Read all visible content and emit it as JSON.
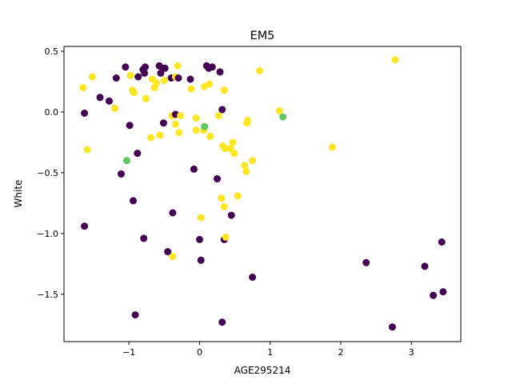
{
  "chart_data": {
    "type": "scatter",
    "title": "EM5",
    "xlabel": "AGE295214",
    "ylabel": "White",
    "xlim": [
      -1.92,
      3.7
    ],
    "ylim": [
      -1.89,
      0.54
    ],
    "xticks": [
      -1,
      0,
      1,
      2,
      3
    ],
    "yticks": [
      0.5,
      0.0,
      -0.5,
      -1.0,
      -1.5
    ],
    "grid": false,
    "legend": "none",
    "colors": {
      "purple": "#440154",
      "yellow": "#fde725",
      "green": "#5ec962"
    },
    "points": [
      {
        "x": -1.65,
        "y": 0.2,
        "c": "yellow"
      },
      {
        "x": -1.52,
        "y": 0.29,
        "c": "yellow"
      },
      {
        "x": -1.63,
        "y": -0.01,
        "c": "purple"
      },
      {
        "x": -1.59,
        "y": -0.31,
        "c": "yellow"
      },
      {
        "x": -1.63,
        "y": -0.94,
        "c": "purple"
      },
      {
        "x": -1.41,
        "y": 0.12,
        "c": "purple"
      },
      {
        "x": -1.28,
        "y": 0.09,
        "c": "purple"
      },
      {
        "x": -1.2,
        "y": 0.03,
        "c": "yellow"
      },
      {
        "x": -1.18,
        "y": 0.28,
        "c": "purple"
      },
      {
        "x": -1.05,
        "y": 0.37,
        "c": "purple"
      },
      {
        "x": -0.98,
        "y": 0.3,
        "c": "yellow"
      },
      {
        "x": -0.95,
        "y": 0.18,
        "c": "yellow"
      },
      {
        "x": -0.93,
        "y": 0.16,
        "c": "yellow"
      },
      {
        "x": -0.87,
        "y": 0.29,
        "c": "purple"
      },
      {
        "x": -0.8,
        "y": 0.35,
        "c": "purple"
      },
      {
        "x": -0.77,
        "y": 0.37,
        "c": "purple"
      },
      {
        "x": -0.78,
        "y": 0.32,
        "c": "purple"
      },
      {
        "x": -0.76,
        "y": 0.11,
        "c": "yellow"
      },
      {
        "x": -0.67,
        "y": 0.27,
        "c": "yellow"
      },
      {
        "x": -0.64,
        "y": 0.2,
        "c": "yellow"
      },
      {
        "x": -0.61,
        "y": 0.24,
        "c": "yellow"
      },
      {
        "x": -0.57,
        "y": 0.38,
        "c": "purple"
      },
      {
        "x": -0.55,
        "y": 0.32,
        "c": "purple"
      },
      {
        "x": -0.52,
        "y": 0.36,
        "c": "purple"
      },
      {
        "x": -0.5,
        "y": 0.26,
        "c": "yellow"
      },
      {
        "x": -0.49,
        "y": 0.36,
        "c": "purple"
      },
      {
        "x": -0.4,
        "y": 0.28,
        "c": "purple"
      },
      {
        "x": -0.34,
        "y": 0.29,
        "c": "yellow"
      },
      {
        "x": -0.31,
        "y": 0.38,
        "c": "yellow"
      },
      {
        "x": -0.3,
        "y": 0.28,
        "c": "purple"
      },
      {
        "x": -0.13,
        "y": 0.27,
        "c": "purple"
      },
      {
        "x": -0.12,
        "y": 0.19,
        "c": "yellow"
      },
      {
        "x": -0.99,
        "y": -0.11,
        "c": "purple"
      },
      {
        "x": -1.03,
        "y": -0.4,
        "c": "green"
      },
      {
        "x": -0.88,
        "y": -0.34,
        "c": "purple"
      },
      {
        "x": -1.11,
        "y": -0.51,
        "c": "purple"
      },
      {
        "x": -0.94,
        "y": -0.73,
        "c": "purple"
      },
      {
        "x": -0.69,
        "y": -0.21,
        "c": "yellow"
      },
      {
        "x": -0.56,
        "y": -0.19,
        "c": "yellow"
      },
      {
        "x": -0.51,
        "y": -0.09,
        "c": "purple"
      },
      {
        "x": -0.39,
        "y": -0.03,
        "c": "yellow"
      },
      {
        "x": -0.34,
        "y": -0.02,
        "c": "purple"
      },
      {
        "x": -0.34,
        "y": -0.1,
        "c": "yellow"
      },
      {
        "x": -0.27,
        "y": -0.03,
        "c": "yellow"
      },
      {
        "x": -0.29,
        "y": -0.17,
        "c": "yellow"
      },
      {
        "x": -0.05,
        "y": -0.05,
        "c": "yellow"
      },
      {
        "x": -0.05,
        "y": -0.15,
        "c": "yellow"
      },
      {
        "x": -0.08,
        "y": -0.47,
        "c": "purple"
      },
      {
        "x": 0.06,
        "y": -0.15,
        "c": "yellow"
      },
      {
        "x": 0.07,
        "y": -0.12,
        "c": "green"
      },
      {
        "x": 0.15,
        "y": -0.2,
        "c": "yellow"
      },
      {
        "x": 0.07,
        "y": 0.21,
        "c": "yellow"
      },
      {
        "x": 0.14,
        "y": 0.23,
        "c": "yellow"
      },
      {
        "x": 0.1,
        "y": 0.38,
        "c": "purple"
      },
      {
        "x": 0.13,
        "y": 0.36,
        "c": "purple"
      },
      {
        "x": 0.18,
        "y": 0.37,
        "c": "purple"
      },
      {
        "x": 0.29,
        "y": 0.33,
        "c": "purple"
      },
      {
        "x": 0.35,
        "y": 0.18,
        "c": "yellow"
      },
      {
        "x": 0.32,
        "y": 0.02,
        "c": "purple"
      },
      {
        "x": 0.27,
        "y": -0.03,
        "c": "yellow"
      },
      {
        "x": 0.33,
        "y": -0.28,
        "c": "yellow"
      },
      {
        "x": 0.36,
        "y": -0.3,
        "c": "yellow"
      },
      {
        "x": 0.44,
        "y": -0.3,
        "c": "yellow"
      },
      {
        "x": 0.47,
        "y": -0.25,
        "c": "yellow"
      },
      {
        "x": 0.49,
        "y": -0.34,
        "c": "yellow"
      },
      {
        "x": 0.25,
        "y": -0.55,
        "c": "purple"
      },
      {
        "x": 0.31,
        "y": -0.71,
        "c": "yellow"
      },
      {
        "x": 0.35,
        "y": -0.78,
        "c": "yellow"
      },
      {
        "x": 0.54,
        "y": -0.69,
        "c": "yellow"
      },
      {
        "x": 0.45,
        "y": -0.85,
        "c": "purple"
      },
      {
        "x": 0.64,
        "y": -0.44,
        "c": "yellow"
      },
      {
        "x": 0.66,
        "y": -0.49,
        "c": "yellow"
      },
      {
        "x": 0.67,
        "y": -0.09,
        "c": "yellow"
      },
      {
        "x": 0.68,
        "y": -0.07,
        "c": "yellow"
      },
      {
        "x": 0.75,
        "y": -0.4,
        "c": "yellow"
      },
      {
        "x": 0.85,
        "y": 0.34,
        "c": "yellow"
      },
      {
        "x": 1.13,
        "y": 0.01,
        "c": "yellow"
      },
      {
        "x": 1.18,
        "y": -0.04,
        "c": "green"
      },
      {
        "x": 1.88,
        "y": -0.29,
        "c": "yellow"
      },
      {
        "x": 2.77,
        "y": 0.43,
        "c": "yellow"
      },
      {
        "x": 0.02,
        "y": -0.87,
        "c": "yellow"
      },
      {
        "x": 0.0,
        "y": -1.05,
        "c": "purple"
      },
      {
        "x": 0.02,
        "y": -1.22,
        "c": "purple"
      },
      {
        "x": 0.35,
        "y": -1.05,
        "c": "purple"
      },
      {
        "x": 0.37,
        "y": -1.03,
        "c": "yellow"
      },
      {
        "x": 0.75,
        "y": -1.36,
        "c": "purple"
      },
      {
        "x": 0.32,
        "y": -1.73,
        "c": "purple"
      },
      {
        "x": -0.79,
        "y": -1.04,
        "c": "purple"
      },
      {
        "x": -0.45,
        "y": -1.15,
        "c": "purple"
      },
      {
        "x": -0.38,
        "y": -1.19,
        "c": "yellow"
      },
      {
        "x": -0.38,
        "y": -0.83,
        "c": "purple"
      },
      {
        "x": -0.91,
        "y": -1.67,
        "c": "purple"
      },
      {
        "x": 2.36,
        "y": -1.24,
        "c": "purple"
      },
      {
        "x": 2.73,
        "y": -1.77,
        "c": "purple"
      },
      {
        "x": 3.19,
        "y": -1.27,
        "c": "purple"
      },
      {
        "x": 3.31,
        "y": -1.51,
        "c": "purple"
      },
      {
        "x": 3.43,
        "y": -1.07,
        "c": "purple"
      },
      {
        "x": 3.45,
        "y": -1.48,
        "c": "purple"
      }
    ]
  }
}
